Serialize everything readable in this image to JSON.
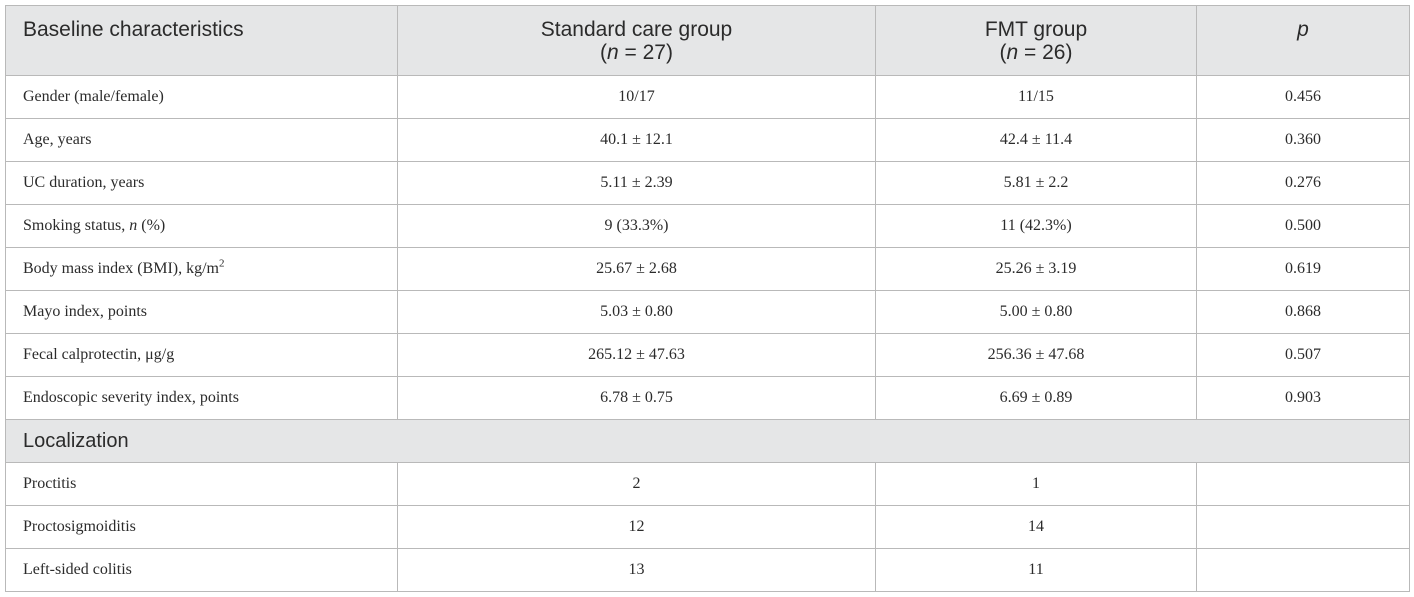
{
  "table": {
    "header": [
      [
        [
          "Baseline characteristics"
        ]
      ],
      [
        [
          "Standard care group"
        ],
        [
          "(",
          {
            "italic": "n"
          },
          " = 27)"
        ]
      ],
      [
        [
          "FMT group"
        ],
        [
          "(",
          {
            "italic": "n"
          },
          " = 26)"
        ]
      ],
      [
        [
          {
            "italic": "p"
          }
        ]
      ]
    ],
    "rows": [
      [
        [
          "Gender (male/female)"
        ],
        [
          "10/17"
        ],
        [
          "11/15"
        ],
        [
          "0.456"
        ]
      ],
      [
        [
          "Age, years"
        ],
        [
          "40.1 ± 12.1"
        ],
        [
          "42.4 ± 11.4"
        ],
        [
          "0.360"
        ]
      ],
      [
        [
          "UC duration, years"
        ],
        [
          "5.11 ± 2.39"
        ],
        [
          "5.81 ± 2.2"
        ],
        [
          "0.276"
        ]
      ],
      [
        [
          "Smoking status, ",
          {
            "italic": "n"
          },
          " (%)"
        ],
        [
          "9 (33.3%)"
        ],
        [
          "11 (42.3%)"
        ],
        [
          "0.500"
        ]
      ],
      [
        [
          "Body mass index (BMI), kg/m",
          {
            "sup": "2"
          }
        ],
        [
          "25.67 ± 2.68"
        ],
        [
          "25.26 ± 3.19"
        ],
        [
          "0.619"
        ]
      ],
      [
        [
          "Mayo index, points"
        ],
        [
          "5.03 ± 0.80"
        ],
        [
          "5.00 ± 0.80"
        ],
        [
          "0.868"
        ]
      ],
      [
        [
          "Fecal calprotectin, μg/g"
        ],
        [
          "265.12 ± 47.63"
        ],
        [
          "256.36 ± 47.68"
        ],
        [
          "0.507"
        ]
      ],
      [
        [
          "Endoscopic severity index, points"
        ],
        [
          "6.78 ± 0.75"
        ],
        [
          "6.69 ± 0.89"
        ],
        [
          "0.903"
        ]
      ],
      [
        [
          "Localization"
        ]
      ],
      [
        [
          "Proctitis"
        ],
        [
          "2"
        ],
        [
          "1"
        ]
      ],
      [
        [
          "Proctosigmoiditis"
        ],
        [
          "12"
        ],
        [
          "14"
        ]
      ],
      [
        [
          "Left-sided colitis"
        ],
        [
          "13"
        ],
        [
          "11"
        ]
      ]
    ]
  }
}
